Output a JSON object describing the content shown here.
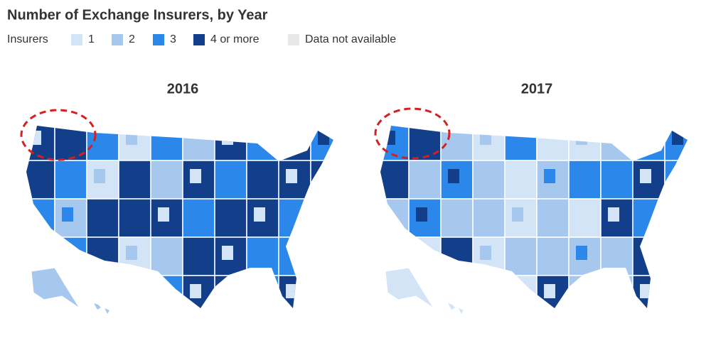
{
  "header": {
    "title": "Number of Exchange Insurers, by Year"
  },
  "legend": {
    "label": "Insurers",
    "items": [
      {
        "label": "1",
        "color": "#d3e4f6"
      },
      {
        "label": "2",
        "color": "#a6c8ef"
      },
      {
        "label": "3",
        "color": "#2b87ea"
      },
      {
        "label": "4 or more",
        "color": "#123e8a"
      },
      {
        "label": "Data not available",
        "color": "#e8e8e8"
      }
    ]
  },
  "maps": [
    {
      "title": "2016"
    },
    {
      "title": "2017"
    }
  ]
}
